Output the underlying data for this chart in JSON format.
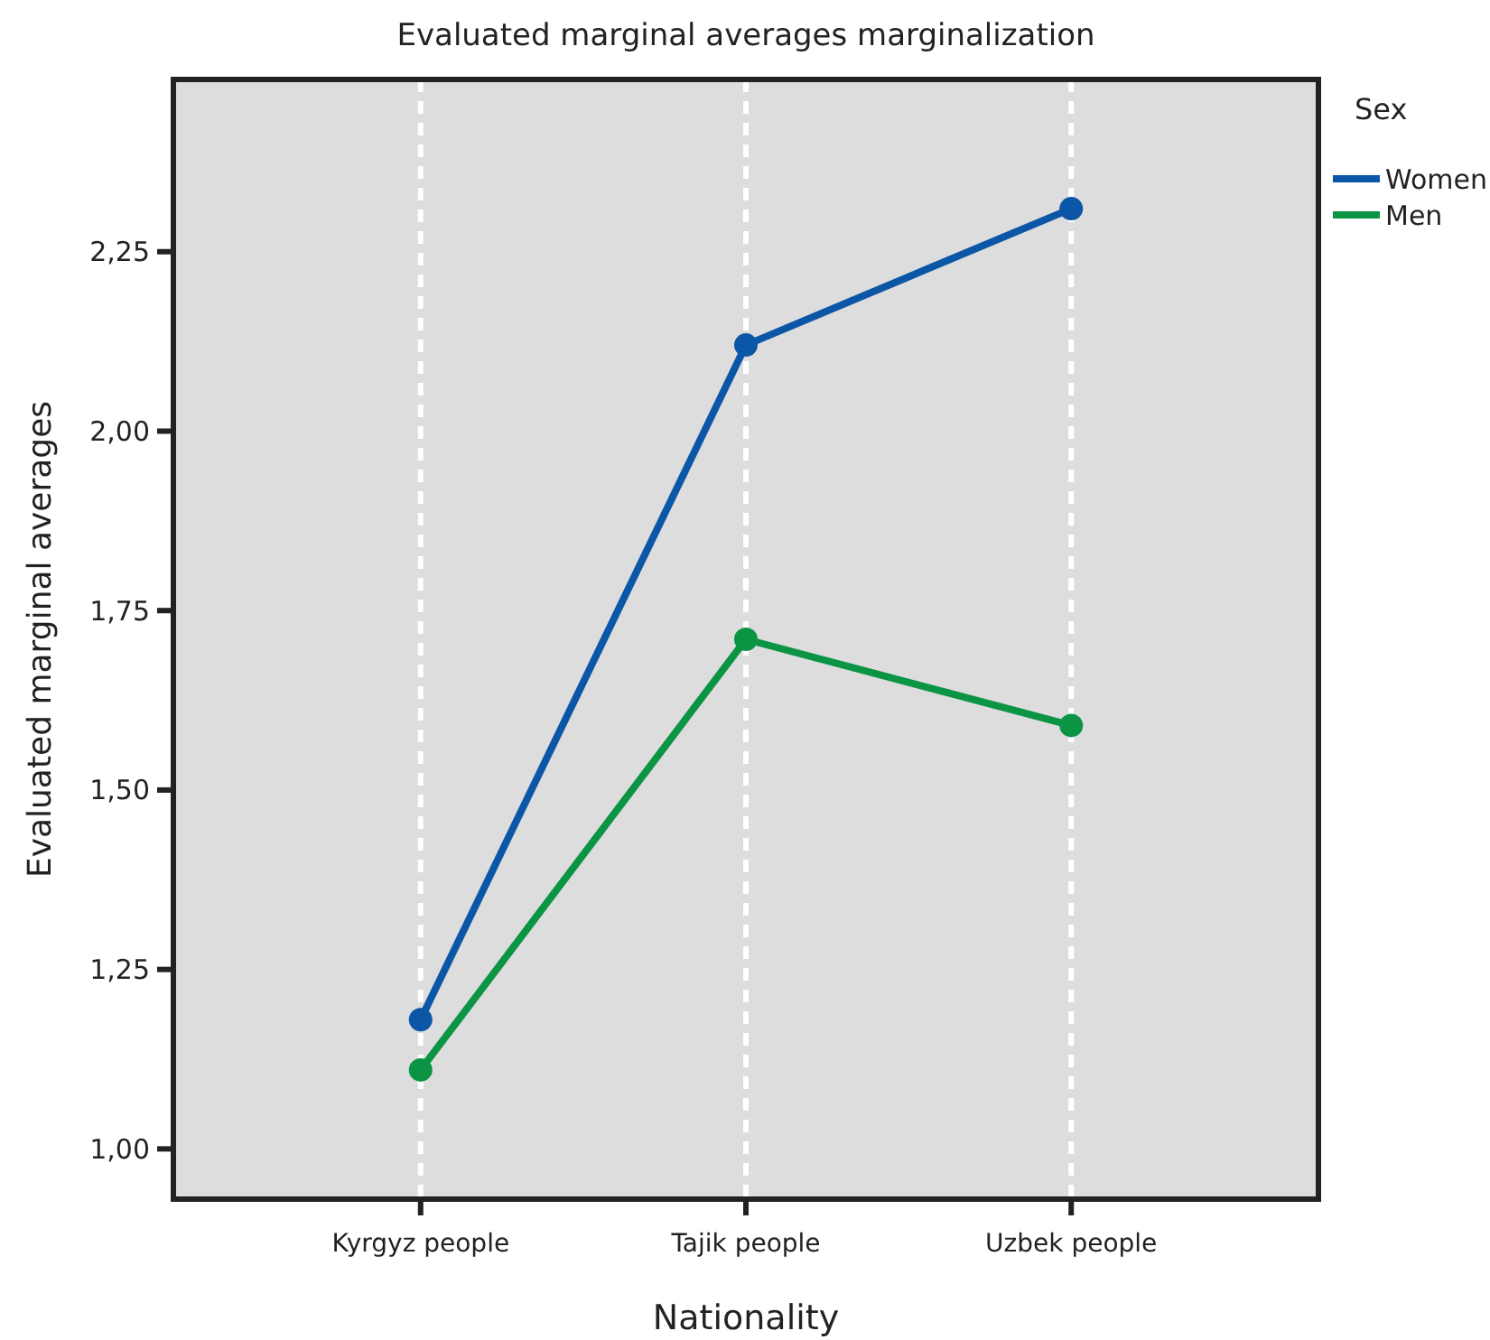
{
  "chart_data": {
    "type": "line",
    "title": "Evaluated marginal averages marginalization",
    "xlabel": "Nationality",
    "ylabel": "Evaluated marginal averages",
    "legend_title": "Sex",
    "categories": [
      "Kyrgyz people",
      "Tajik people",
      "Uzbek people"
    ],
    "series": [
      {
        "name": "Women",
        "color": "#0b56a6",
        "values": [
          1.18,
          2.12,
          2.31
        ]
      },
      {
        "name": "Men",
        "color": "#0a9444",
        "values": [
          1.11,
          1.71,
          1.59
        ]
      }
    ],
    "ylim": [
      0.93,
      2.49
    ],
    "yticks": [
      {
        "value": 1,
        "label": "1,00"
      },
      {
        "value": 1.25,
        "label": "1,25"
      },
      {
        "value": 1.5,
        "label": "1,50"
      },
      {
        "value": 1.75,
        "label": "1,75"
      },
      {
        "value": 2,
        "label": "2,00"
      },
      {
        "value": 2.25,
        "label": "2,25"
      }
    ],
    "grid": "x",
    "legend": "top right",
    "marker": "circle",
    "line_style": "solid"
  }
}
